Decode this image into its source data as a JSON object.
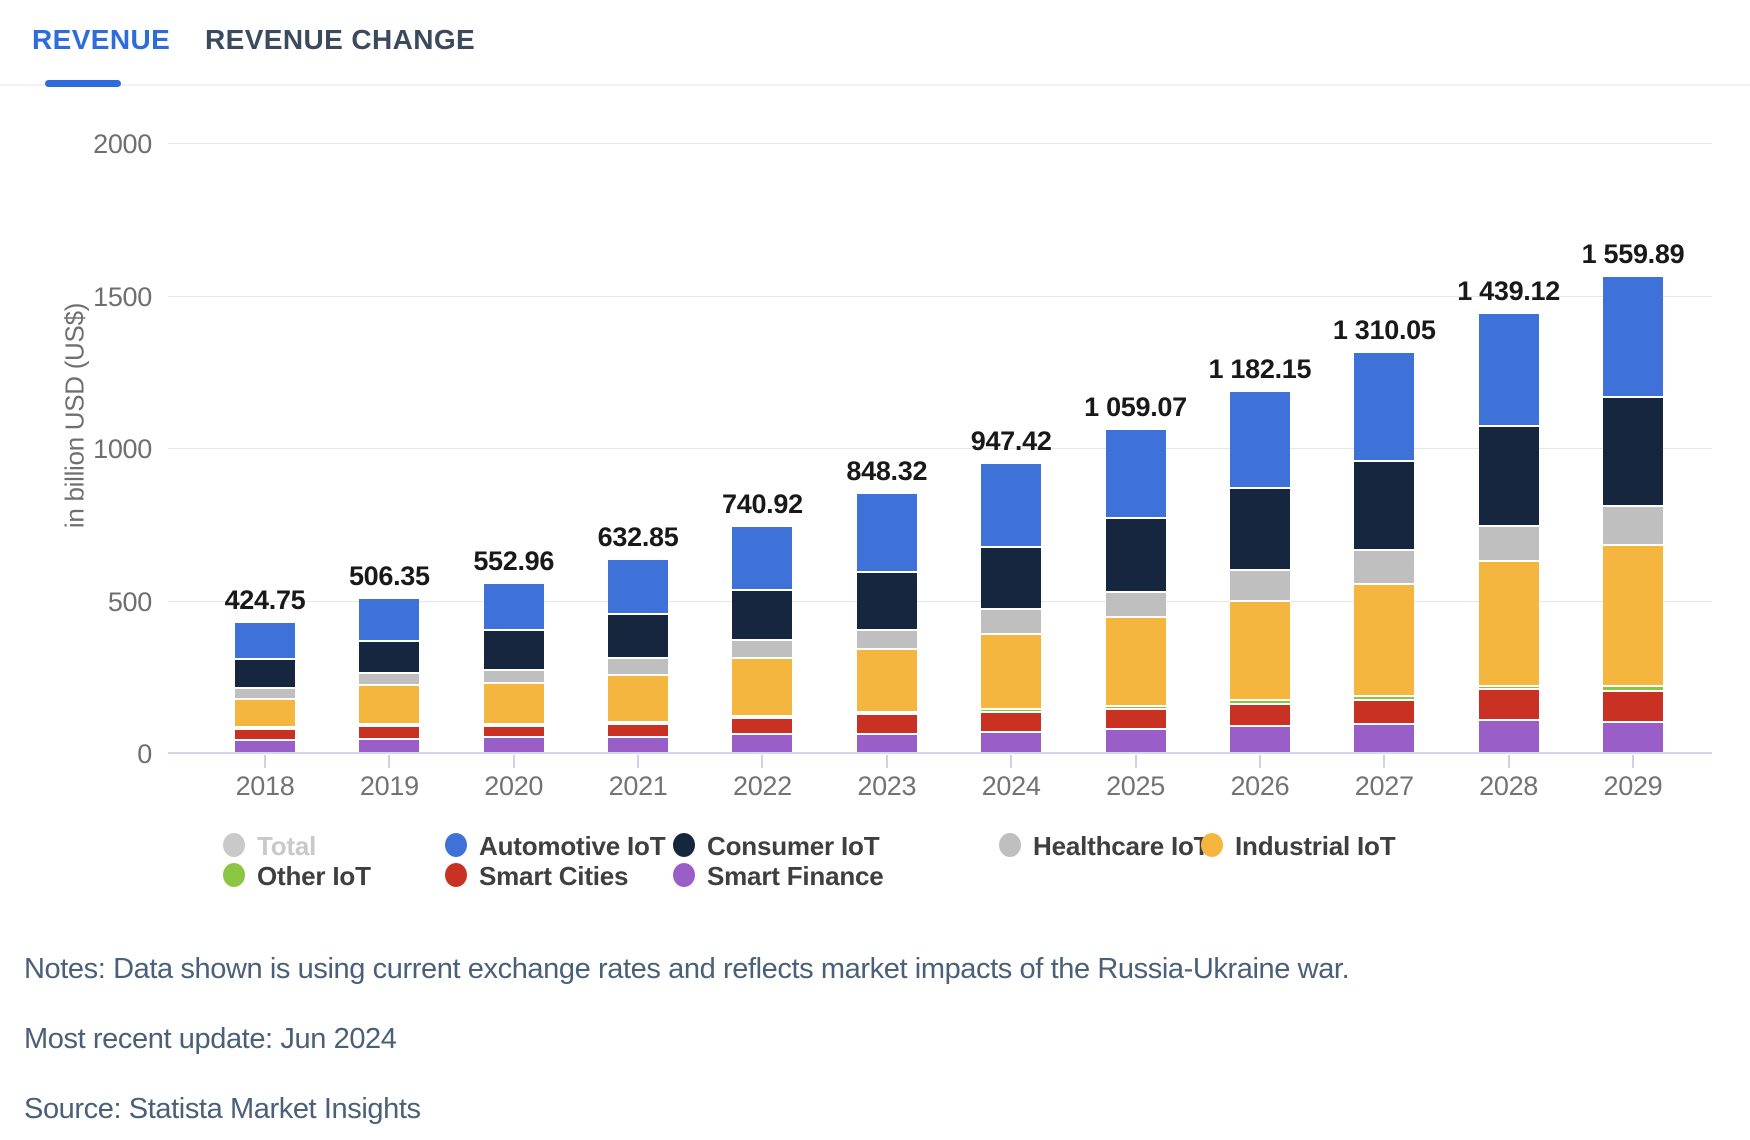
{
  "tabs": [
    {
      "label": "REVENUE",
      "active": true
    },
    {
      "label": "REVENUE CHANGE",
      "active": false
    }
  ],
  "accent_color": "#2e6bdb",
  "chart_data": {
    "type": "bar",
    "subtype": "stacked",
    "title": "",
    "xlabel": "",
    "ylabel": "in billion USD (US$)",
    "ylim": [
      0,
      2000
    ],
    "yticks": [
      0,
      500,
      1000,
      1500,
      2000
    ],
    "grid": true,
    "categories": [
      "2018",
      "2019",
      "2020",
      "2021",
      "2022",
      "2023",
      "2024",
      "2025",
      "2026",
      "2027",
      "2028",
      "2029"
    ],
    "totals": [
      424.75,
      506.35,
      552.96,
      632.85,
      740.92,
      848.32,
      947.42,
      1059.07,
      1182.15,
      1310.05,
      1439.12,
      1559.89
    ],
    "total_labels": [
      "424.75",
      "506.35",
      "552.96",
      "632.85",
      "740.92",
      "848.32",
      "947.42",
      "1 059.07",
      "1 182.15",
      "1 310.05",
      "1 439.12",
      "1 559.89"
    ],
    "series": [
      {
        "name": "Smart Finance",
        "color": "#9a5ec8",
        "values": [
          46.5,
          50.0,
          54.4,
          56.5,
          66.5,
          66.8,
          73.6,
          81.5,
          91.0,
          97.6,
          110.8,
          105.8
        ]
      },
      {
        "name": "Smart Cities",
        "color": "#c93122",
        "values": [
          37.3,
          41.7,
          37.6,
          41.1,
          52.0,
          63.6,
          65.3,
          66.1,
          73.4,
          79.3,
          101.5,
          101.7
        ]
      },
      {
        "name": "Other IoT",
        "color": "#8bc541",
        "values": [
          3.1,
          3.7,
          4.2,
          4.6,
          5.2,
          8.3,
          8.3,
          9.3,
          11.4,
          13.2,
          12.3,
          16.4
        ]
      },
      {
        "name": "Industrial IoT",
        "color": "#f4b63f",
        "values": [
          91.8,
          129.3,
          134.9,
          157.1,
          191.2,
          204.5,
          246.7,
          293.2,
          326.8,
          366.2,
          407.2,
          460.1
        ]
      },
      {
        "name": "Healthcare IoT",
        "color": "#bfbfbf",
        "values": [
          36.2,
          38.6,
          43.9,
          54.4,
          57.2,
          63.6,
          81.9,
          81.5,
          102.4,
          111.9,
          115.9,
          128.4
        ]
      },
      {
        "name": "Consumer IoT",
        "color": "#16263e",
        "values": [
          96.1,
          106.4,
          129.6,
          143.7,
          164.2,
          190.9,
          204.2,
          242.6,
          265.8,
          294.0,
          328.2,
          357.4
        ]
      },
      {
        "name": "Automotive IoT",
        "color": "#3e72d8",
        "values": [
          113.75,
          136.65,
          148.36,
          175.45,
          204.62,
          250.62,
          267.42,
          284.87,
          311.35,
          347.85,
          363.22,
          390.09
        ]
      }
    ],
    "legend_position": "bottom",
    "legend_rows": [
      [
        {
          "label": "Total",
          "color": "#c9c9c9",
          "disabled": true
        },
        {
          "label": "Automotive IoT",
          "color": "#3e72d8",
          "disabled": false
        },
        {
          "label": "Consumer IoT",
          "color": "#16263e",
          "disabled": false
        },
        {
          "label": "Healthcare IoT",
          "color": "#bfbfbf",
          "disabled": false
        },
        {
          "label": "Industrial IoT",
          "color": "#f4b63f",
          "disabled": false
        }
      ],
      [
        {
          "label": "Other IoT",
          "color": "#8bc541",
          "disabled": false
        },
        {
          "label": "Smart Cities",
          "color": "#c93122",
          "disabled": false
        },
        {
          "label": "Smart Finance",
          "color": "#9a5ec8",
          "disabled": false
        }
      ]
    ]
  },
  "footnotes": {
    "notes": "Notes: Data shown is using current exchange rates and reflects market impacts of the Russia-Ukraine war.",
    "update": "Most recent update: Jun 2024",
    "source": "Source: Statista Market Insights"
  }
}
